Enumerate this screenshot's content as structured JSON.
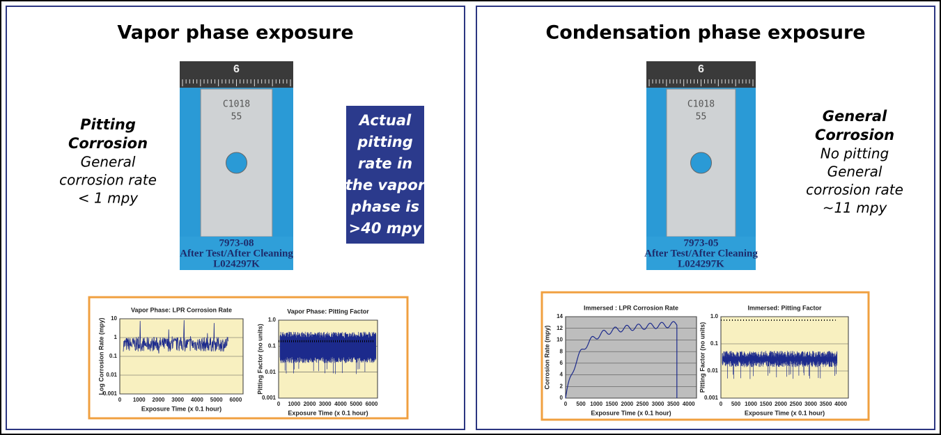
{
  "panels": [
    {
      "title": "Vapor phase exposure",
      "note": {
        "heading": [
          "Pitting",
          "Corrosion"
        ],
        "lines": [
          "General",
          "corrosion rate",
          "< 1 mpy"
        ]
      },
      "callout": [
        "Actual",
        "pitting",
        "rate in",
        "the vapor",
        "phase is",
        ">40 mpy"
      ],
      "photo": {
        "ruler": "6",
        "engraving": [
          "C1018",
          "55"
        ],
        "caption": [
          "7973-08",
          "After Test/After Cleaning",
          "L024297K"
        ]
      },
      "charts": [
        {
          "title": "Vapor Phase: LPR Corrosion Rate",
          "y_label": "Log Corrosion Rate (mpy)",
          "x_label": "Exposure Time (x 0.1 hour)",
          "yticks": [
            "10",
            "1",
            "0.1",
            "0.01",
            "0.001"
          ],
          "xticks": [
            "0",
            "1000",
            "2000",
            "3000",
            "4000",
            "5000",
            "6000"
          ]
        },
        {
          "title": "Vapor Phase: Pitting Factor",
          "y_label": "Pitting Factor (no units)",
          "x_label": "Exposure Time (x 0.1 hour)",
          "yticks": [
            "1.0",
            "0.1",
            "0.01",
            "0.001"
          ],
          "xticks": [
            "0",
            "1000",
            "2000",
            "3000",
            "4000",
            "5000",
            "6000"
          ]
        }
      ]
    },
    {
      "title": "Condensation phase exposure",
      "note": {
        "heading": [
          "General",
          "Corrosion"
        ],
        "lines": [
          "No pitting",
          "General",
          "corrosion rate",
          "~11 mpy"
        ]
      },
      "photo": {
        "ruler": "6",
        "engraving": [
          "C1018",
          "55"
        ],
        "caption": [
          "7973-05",
          "After Test/After Cleaning",
          "L024297K"
        ]
      },
      "charts": [
        {
          "title": "Immersed : LPR Corrosion Rate",
          "y_label": "Corrosion Rate (mpy)",
          "x_label": "Exposure Time (x 0.1 hour)",
          "yticks": [
            "14",
            "12",
            "10",
            "8",
            "6",
            "4",
            "2",
            "0"
          ],
          "xticks": [
            "0",
            "500",
            "1000",
            "1500",
            "2000",
            "2500",
            "3000",
            "3500",
            "4000"
          ]
        },
        {
          "title": "Immersed: Pitting Factor",
          "y_label": "Pitting Factor (no units)",
          "x_label": "Exposure Time (x 0.1 hour)",
          "yticks": [
            "1.0",
            "0.1",
            "0.01",
            "0.001"
          ],
          "xticks": [
            "0",
            "500",
            "1000",
            "1500",
            "2000",
            "2500",
            "3000",
            "3500",
            "4000"
          ]
        }
      ]
    }
  ]
}
